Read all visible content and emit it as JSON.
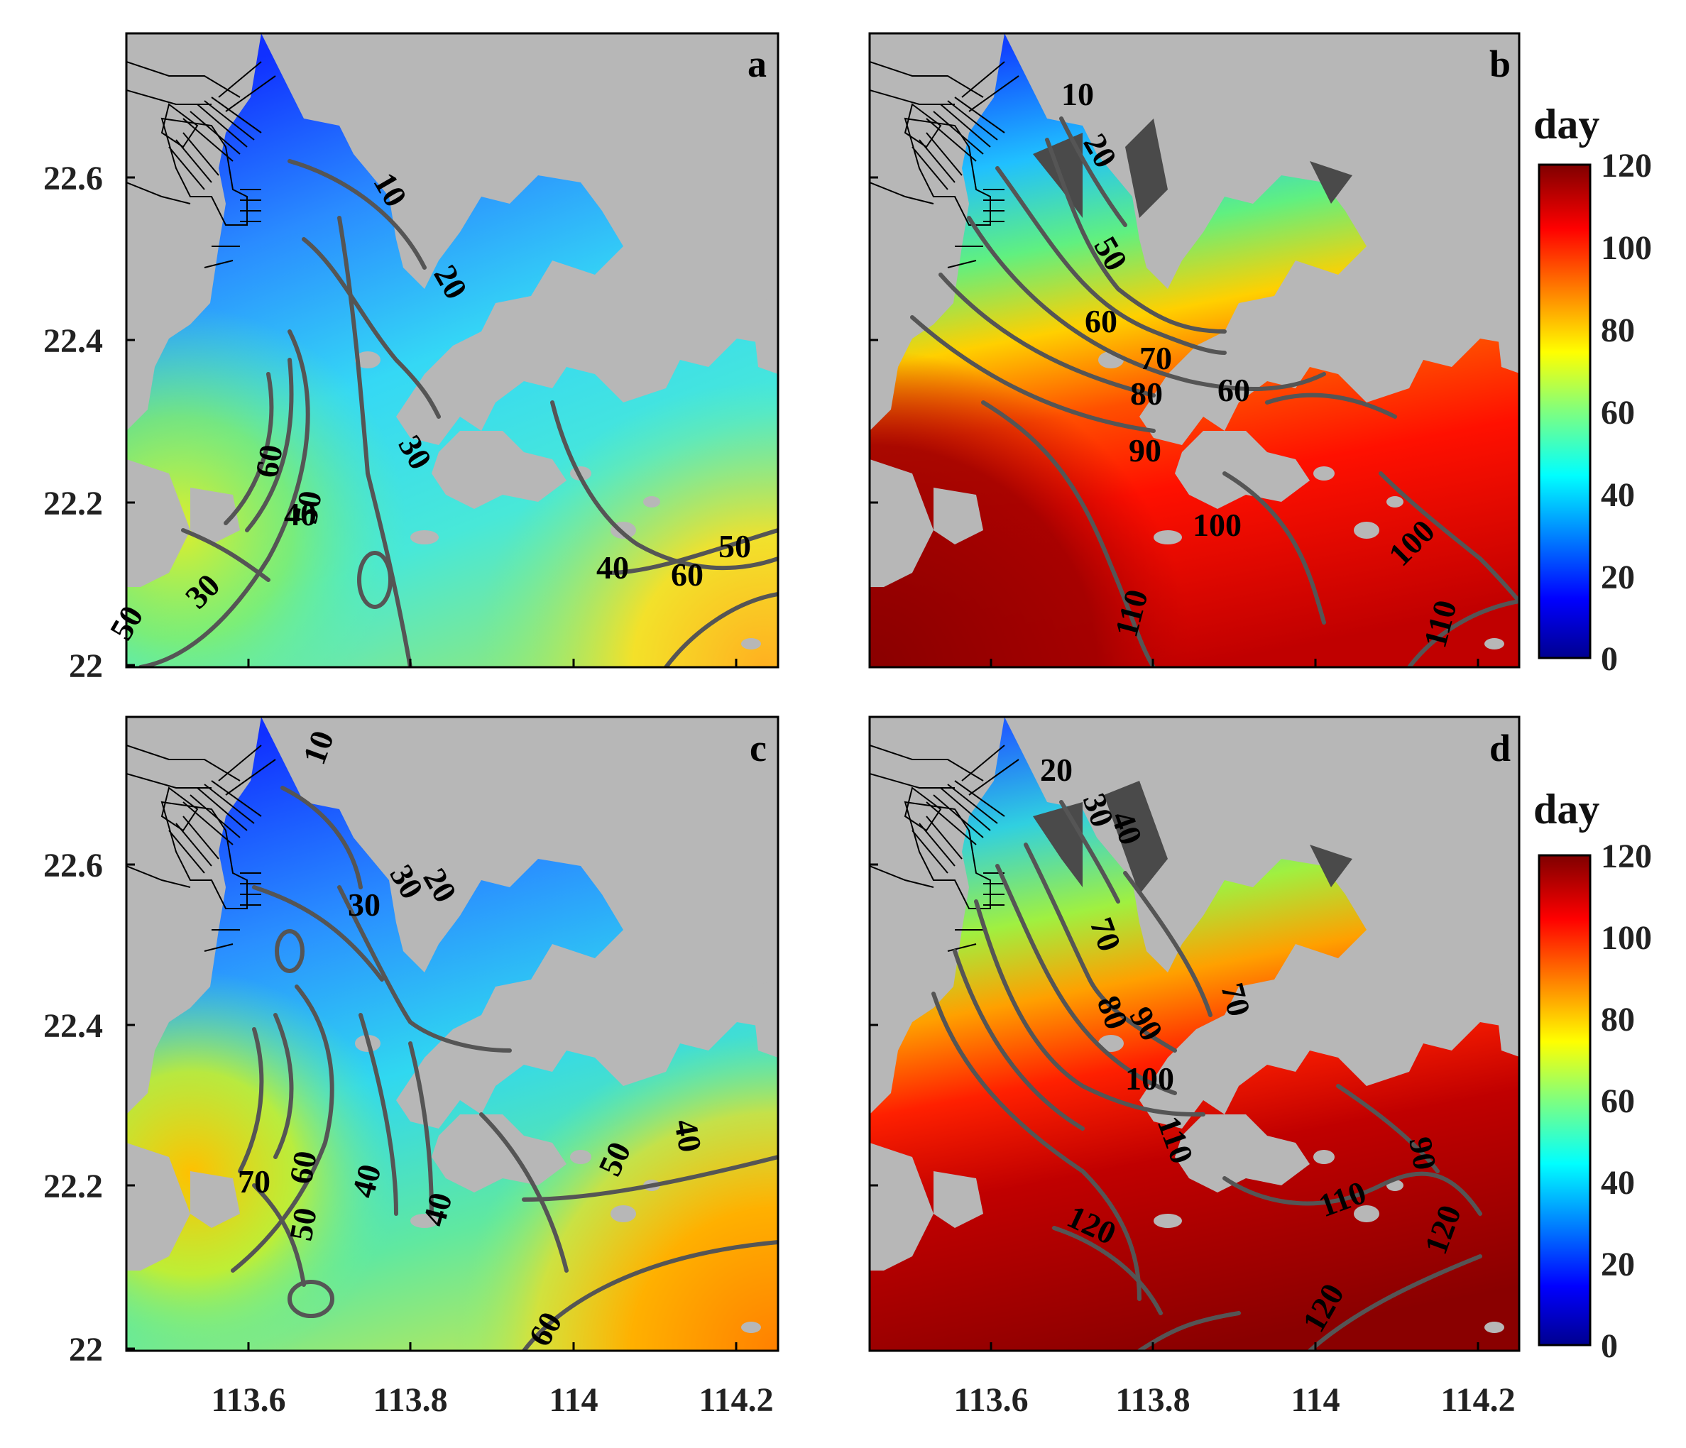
{
  "figure": {
    "panels": [
      {
        "letter": "a",
        "contour_labels": [
          "10",
          "20",
          "30",
          "30",
          "40",
          "40",
          "50",
          "60",
          "50",
          "60",
          "50"
        ]
      },
      {
        "letter": "b",
        "contour_labels": [
          "10",
          "20",
          "50",
          "60",
          "70",
          "80",
          "90",
          "60",
          "100",
          "110",
          "100",
          "110"
        ]
      },
      {
        "letter": "c",
        "contour_labels": [
          "10",
          "30",
          "20",
          "30",
          "70",
          "60",
          "50",
          "40",
          "40",
          "50",
          "40",
          "60"
        ]
      },
      {
        "letter": "d",
        "contour_labels": [
          "20",
          "30",
          "40",
          "70",
          "80",
          "90",
          "100",
          "70",
          "110",
          "120",
          "110",
          "90",
          "120",
          "120"
        ]
      }
    ],
    "colorbar": {
      "title": "day",
      "ticks": [
        "120",
        "100",
        "80",
        "60",
        "40",
        "20",
        "0"
      ],
      "range": [
        0,
        120
      ],
      "colormap": "jet"
    },
    "axes": {
      "y_ticks": [
        "22.6",
        "22.4",
        "22.2",
        "22"
      ],
      "x_ticks": [
        "113.6",
        "113.8",
        "114",
        "114.2"
      ]
    },
    "colors": {
      "land": "#b7b7b7",
      "contour_line": "#555555",
      "coastline": "#000000",
      "land_reclamation_dark": "#4a4a4a"
    }
  }
}
